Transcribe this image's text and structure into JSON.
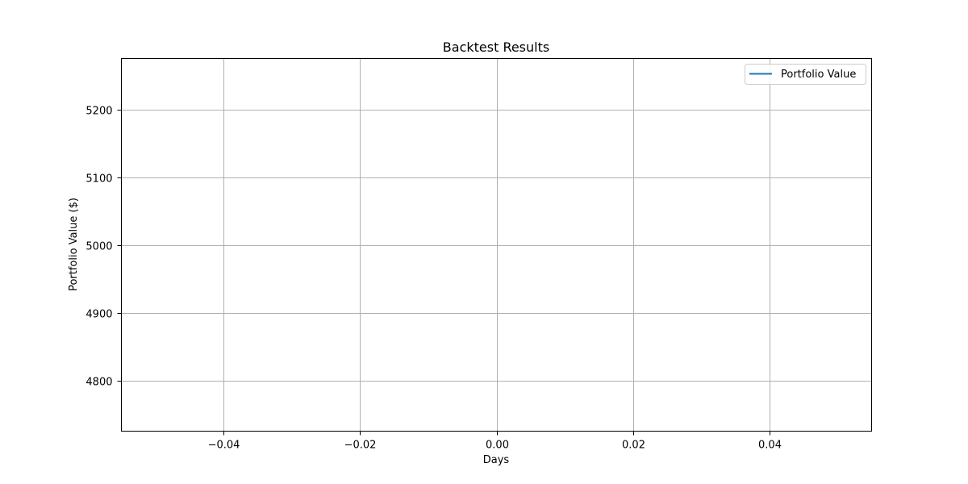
{
  "chart_data": {
    "type": "line",
    "title": "Backtest Results",
    "xlabel": "Days",
    "ylabel": "Portfolio Value ($)",
    "xlim": [
      -0.055,
      0.055
    ],
    "ylim": [
      4725,
      5275
    ],
    "x_ticks": [
      -0.04,
      -0.02,
      0.0,
      0.02,
      0.04
    ],
    "x_tick_labels": [
      "−0.04",
      "−0.02",
      "0.00",
      "0.02",
      "0.04"
    ],
    "y_ticks": [
      4800,
      4900,
      5000,
      5100,
      5200
    ],
    "y_tick_labels": [
      "4800",
      "4900",
      "5000",
      "5100",
      "5200"
    ],
    "grid": true,
    "legend_position": "top-right",
    "series": [
      {
        "name": "Portfolio Value",
        "color": "#1f77b4",
        "x": [],
        "y": []
      }
    ]
  }
}
